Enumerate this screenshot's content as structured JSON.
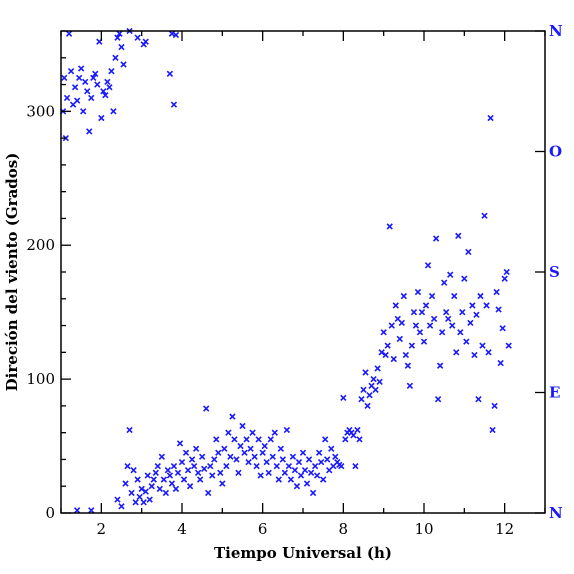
{
  "chart_data": {
    "type": "scatter",
    "title": "",
    "xlabel": "Tiempo Universal (h)",
    "ylabel": "Direción del viento (Grados)",
    "xlim": [
      1,
      13
    ],
    "ylim": [
      0,
      360
    ],
    "xticks": [
      2,
      4,
      6,
      8,
      10,
      12
    ],
    "xtick_labels": [
      "2",
      "4",
      "6",
      "8",
      "10",
      "12"
    ],
    "yticks": [
      0,
      100,
      200,
      300
    ],
    "ytick_labels": [
      "0",
      "100",
      "200",
      "300"
    ],
    "right_axis_labels": [
      {
        "value": 0,
        "label": "N"
      },
      {
        "value": 90,
        "label": "E"
      },
      {
        "value": 180,
        "label": "S"
      },
      {
        "value": 270,
        "label": "O"
      },
      {
        "value": 360,
        "label": "N"
      }
    ],
    "marker": "x",
    "marker_color": "#1a1aff",
    "grid": false,
    "legend": "none",
    "series": [
      {
        "points": [
          [
            1.05,
            300
          ],
          [
            1.08,
            325
          ],
          [
            1.12,
            280
          ],
          [
            1.15,
            310
          ],
          [
            1.2,
            358
          ],
          [
            1.25,
            330
          ],
          [
            1.3,
            305
          ],
          [
            1.35,
            318
          ],
          [
            1.4,
            308
          ],
          [
            1.45,
            325
          ],
          [
            1.5,
            332
          ],
          [
            1.55,
            300
          ],
          [
            1.6,
            322
          ],
          [
            1.65,
            315
          ],
          [
            1.7,
            285
          ],
          [
            1.75,
            310
          ],
          [
            1.8,
            325
          ],
          [
            1.85,
            328
          ],
          [
            1.9,
            320
          ],
          [
            1.95,
            352
          ],
          [
            2.0,
            295
          ],
          [
            2.05,
            315
          ],
          [
            2.1,
            312
          ],
          [
            2.15,
            322
          ],
          [
            2.2,
            318
          ],
          [
            2.25,
            330
          ],
          [
            2.3,
            300
          ],
          [
            2.35,
            340
          ],
          [
            2.4,
            355
          ],
          [
            2.45,
            358
          ],
          [
            2.5,
            348
          ],
          [
            2.55,
            335
          ],
          [
            2.7,
            360
          ],
          [
            2.9,
            355
          ],
          [
            3.05,
            350
          ],
          [
            3.1,
            352
          ],
          [
            3.7,
            328
          ],
          [
            3.75,
            358
          ],
          [
            3.8,
            305
          ],
          [
            3.85,
            357
          ],
          [
            1.4,
            2
          ],
          [
            1.75,
            2
          ],
          [
            2.4,
            10
          ],
          [
            2.5,
            5
          ],
          [
            2.6,
            22
          ],
          [
            2.65,
            35
          ],
          [
            2.7,
            62
          ],
          [
            2.75,
            15
          ],
          [
            2.8,
            32
          ],
          [
            2.85,
            8
          ],
          [
            2.9,
            25
          ],
          [
            2.95,
            12
          ],
          [
            3.0,
            18
          ],
          [
            3.05,
            8
          ],
          [
            3.1,
            16
          ],
          [
            3.15,
            28
          ],
          [
            3.2,
            10
          ],
          [
            3.25,
            20
          ],
          [
            3.3,
            25
          ],
          [
            3.35,
            30
          ],
          [
            3.4,
            35
          ],
          [
            3.45,
            18
          ],
          [
            3.5,
            42
          ],
          [
            3.55,
            25
          ],
          [
            3.6,
            15
          ],
          [
            3.65,
            32
          ],
          [
            3.7,
            28
          ],
          [
            3.75,
            22
          ],
          [
            3.8,
            35
          ],
          [
            3.85,
            18
          ],
          [
            3.9,
            30
          ],
          [
            3.95,
            52
          ],
          [
            4.0,
            38
          ],
          [
            4.05,
            25
          ],
          [
            4.1,
            45
          ],
          [
            4.15,
            32
          ],
          [
            4.2,
            20
          ],
          [
            4.25,
            40
          ],
          [
            4.3,
            35
          ],
          [
            4.35,
            48
          ],
          [
            4.4,
            30
          ],
          [
            4.45,
            25
          ],
          [
            4.5,
            42
          ],
          [
            4.55,
            33
          ],
          [
            4.6,
            78
          ],
          [
            4.65,
            15
          ],
          [
            4.7,
            35
          ],
          [
            4.75,
            28
          ],
          [
            4.8,
            40
          ],
          [
            4.85,
            55
          ],
          [
            4.9,
            45
          ],
          [
            4.95,
            30
          ],
          [
            5.0,
            22
          ],
          [
            5.05,
            48
          ],
          [
            5.1,
            35
          ],
          [
            5.15,
            60
          ],
          [
            5.2,
            42
          ],
          [
            5.25,
            72
          ],
          [
            5.3,
            55
          ],
          [
            5.35,
            40
          ],
          [
            5.4,
            30
          ],
          [
            5.45,
            50
          ],
          [
            5.5,
            65
          ],
          [
            5.55,
            45
          ],
          [
            5.6,
            55
          ],
          [
            5.65,
            38
          ],
          [
            5.7,
            48
          ],
          [
            5.75,
            60
          ],
          [
            5.8,
            42
          ],
          [
            5.85,
            35
          ],
          [
            5.9,
            55
          ],
          [
            5.95,
            28
          ],
          [
            6.0,
            45
          ],
          [
            6.05,
            50
          ],
          [
            6.1,
            38
          ],
          [
            6.15,
            30
          ],
          [
            6.2,
            55
          ],
          [
            6.25,
            42
          ],
          [
            6.3,
            60
          ],
          [
            6.35,
            35
          ],
          [
            6.4,
            25
          ],
          [
            6.45,
            48
          ],
          [
            6.5,
            40
          ],
          [
            6.55,
            30
          ],
          [
            6.6,
            62
          ],
          [
            6.65,
            35
          ],
          [
            6.7,
            25
          ],
          [
            6.75,
            42
          ],
          [
            6.8,
            32
          ],
          [
            6.85,
            20
          ],
          [
            6.9,
            38
          ],
          [
            6.95,
            28
          ],
          [
            7.0,
            45
          ],
          [
            7.05,
            32
          ],
          [
            7.1,
            22
          ],
          [
            7.15,
            40
          ],
          [
            7.2,
            30
          ],
          [
            7.25,
            15
          ],
          [
            7.3,
            35
          ],
          [
            7.35,
            28
          ],
          [
            7.4,
            45
          ],
          [
            7.45,
            38
          ],
          [
            7.5,
            25
          ],
          [
            7.55,
            55
          ],
          [
            7.6,
            40
          ],
          [
            7.65,
            32
          ],
          [
            7.7,
            48
          ],
          [
            7.75,
            35
          ],
          [
            7.8,
            42
          ],
          [
            7.85,
            38
          ],
          [
            7.9,
            36
          ],
          [
            7.95,
            35
          ],
          [
            8.0,
            86
          ],
          [
            8.05,
            55
          ],
          [
            8.1,
            60
          ],
          [
            8.15,
            62
          ],
          [
            8.2,
            60
          ],
          [
            8.25,
            58
          ],
          [
            8.3,
            35
          ],
          [
            8.35,
            62
          ],
          [
            8.4,
            55
          ],
          [
            8.45,
            85
          ],
          [
            8.5,
            92
          ],
          [
            8.55,
            105
          ],
          [
            8.6,
            80
          ],
          [
            8.65,
            88
          ],
          [
            8.7,
            95
          ],
          [
            8.75,
            100
          ],
          [
            8.8,
            92
          ],
          [
            8.85,
            108
          ],
          [
            8.9,
            98
          ],
          [
            8.95,
            120
          ],
          [
            9.0,
            135
          ],
          [
            9.05,
            118
          ],
          [
            9.1,
            125
          ],
          [
            9.15,
            214
          ],
          [
            9.2,
            140
          ],
          [
            9.25,
            115
          ],
          [
            9.3,
            155
          ],
          [
            9.35,
            145
          ],
          [
            9.4,
            130
          ],
          [
            9.45,
            142
          ],
          [
            9.5,
            162
          ],
          [
            9.55,
            118
          ],
          [
            9.6,
            110
          ],
          [
            9.65,
            95
          ],
          [
            9.7,
            125
          ],
          [
            9.75,
            150
          ],
          [
            9.8,
            140
          ],
          [
            9.85,
            165
          ],
          [
            9.9,
            135
          ],
          [
            9.95,
            150
          ],
          [
            10.0,
            128
          ],
          [
            10.05,
            155
          ],
          [
            10.1,
            185
          ],
          [
            10.15,
            140
          ],
          [
            10.2,
            162
          ],
          [
            10.25,
            145
          ],
          [
            10.3,
            205
          ],
          [
            10.35,
            85
          ],
          [
            10.4,
            110
          ],
          [
            10.45,
            135
          ],
          [
            10.5,
            172
          ],
          [
            10.55,
            150
          ],
          [
            10.6,
            145
          ],
          [
            10.65,
            178
          ],
          [
            10.7,
            140
          ],
          [
            10.75,
            162
          ],
          [
            10.8,
            120
          ],
          [
            10.85,
            207
          ],
          [
            10.9,
            135
          ],
          [
            10.95,
            150
          ],
          [
            11.0,
            175
          ],
          [
            11.05,
            128
          ],
          [
            11.1,
            195
          ],
          [
            11.15,
            142
          ],
          [
            11.2,
            155
          ],
          [
            11.25,
            118
          ],
          [
            11.3,
            148
          ],
          [
            11.35,
            85
          ],
          [
            11.4,
            162
          ],
          [
            11.45,
            125
          ],
          [
            11.5,
            222
          ],
          [
            11.55,
            155
          ],
          [
            11.6,
            120
          ],
          [
            11.65,
            295
          ],
          [
            11.7,
            62
          ],
          [
            11.75,
            80
          ],
          [
            11.8,
            165
          ],
          [
            11.85,
            152
          ],
          [
            11.9,
            112
          ],
          [
            11.95,
            138
          ],
          [
            12.0,
            175
          ],
          [
            12.05,
            180
          ],
          [
            12.1,
            125
          ]
        ]
      }
    ]
  }
}
